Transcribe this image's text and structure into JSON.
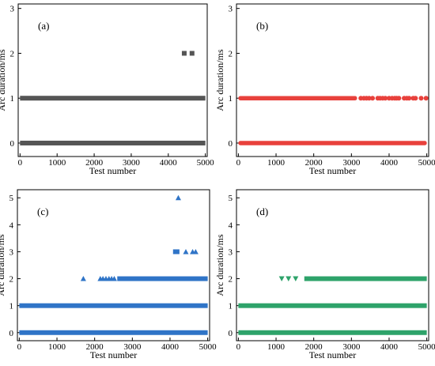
{
  "figure": {
    "panels": 4,
    "layout": "2x2 grid"
  },
  "chart_data": [
    {
      "type": "scatter",
      "panel_label": "(a)",
      "xlabel": "Test number",
      "ylabel": "Arc duration/ms",
      "xlim": [
        -50,
        5050
      ],
      "ylim": [
        -0.3,
        3.1
      ],
      "xticks": [
        0,
        1000,
        2000,
        3000,
        4000,
        5000
      ],
      "yticks": [
        0,
        1,
        2,
        3
      ],
      "marker": "square",
      "color": "#555555",
      "series": [
        {
          "bands": [
            {
              "y": 0,
              "x_start": 0,
              "x_end": 5000
            },
            {
              "y": 1,
              "x_start": 0,
              "x_end": 5000
            }
          ],
          "points": [
            {
              "x": 4430,
              "y": 2
            },
            {
              "x": 4640,
              "y": 2
            }
          ]
        }
      ]
    },
    {
      "type": "scatter",
      "panel_label": "(b)",
      "xlabel": "Test number",
      "ylabel": "Arc duration/ms",
      "xlim": [
        -50,
        5050
      ],
      "ylim": [
        -0.3,
        3.1
      ],
      "xticks": [
        0,
        1000,
        2000,
        3000,
        4000,
        5000
      ],
      "yticks": [
        0,
        1,
        2,
        3
      ],
      "marker": "circle",
      "color": "#e8413c",
      "series": [
        {
          "bands": [
            {
              "y": 0,
              "x_start": 0,
              "x_end": 5000
            },
            {
              "y": 1,
              "x_start": 0,
              "x_end": 3150
            }
          ],
          "points": [
            {
              "x": 3250,
              "y": 1
            },
            {
              "x": 3330,
              "y": 1
            },
            {
              "x": 3400,
              "y": 1
            },
            {
              "x": 3470,
              "y": 1
            },
            {
              "x": 3560,
              "y": 1
            },
            {
              "x": 3700,
              "y": 1
            },
            {
              "x": 3760,
              "y": 1
            },
            {
              "x": 3830,
              "y": 1
            },
            {
              "x": 3900,
              "y": 1
            },
            {
              "x": 4000,
              "y": 1
            },
            {
              "x": 4080,
              "y": 1
            },
            {
              "x": 4150,
              "y": 1
            },
            {
              "x": 4200,
              "y": 1
            },
            {
              "x": 4260,
              "y": 1
            },
            {
              "x": 4400,
              "y": 1
            },
            {
              "x": 4470,
              "y": 1
            },
            {
              "x": 4530,
              "y": 1
            },
            {
              "x": 4640,
              "y": 1
            },
            {
              "x": 4700,
              "y": 1
            },
            {
              "x": 4850,
              "y": 1
            },
            {
              "x": 4980,
              "y": 1
            }
          ]
        }
      ]
    },
    {
      "type": "scatter",
      "panel_label": "(c)",
      "xlabel": "Test number",
      "ylabel": "Arc duration/ms",
      "xlim": [
        -50,
        5050
      ],
      "ylim": [
        -0.3,
        5.3
      ],
      "xticks": [
        0,
        1000,
        2000,
        3000,
        4000,
        5000
      ],
      "yticks": [
        0,
        1,
        2,
        3,
        4,
        5
      ],
      "marker": "triangle-up",
      "color": "#2f74c7",
      "series": [
        {
          "bands": [
            {
              "y": 0,
              "x_start": 0,
              "x_end": 5000
            },
            {
              "y": 1,
              "x_start": 0,
              "x_end": 5000
            },
            {
              "y": 2,
              "x_start": 2600,
              "x_end": 5000
            },
            {
              "y": 3,
              "x_start": 4080,
              "x_end": 4250
            }
          ],
          "points": [
            {
              "x": 1700,
              "y": 2
            },
            {
              "x": 2150,
              "y": 2
            },
            {
              "x": 2220,
              "y": 2
            },
            {
              "x": 2300,
              "y": 2
            },
            {
              "x": 2380,
              "y": 2
            },
            {
              "x": 2450,
              "y": 2
            },
            {
              "x": 2520,
              "y": 2
            },
            {
              "x": 4420,
              "y": 3
            },
            {
              "x": 4600,
              "y": 3
            },
            {
              "x": 4680,
              "y": 3
            },
            {
              "x": 4220,
              "y": 5
            }
          ]
        }
      ]
    },
    {
      "type": "scatter",
      "panel_label": "(d)",
      "xlabel": "Test number",
      "ylabel": "Arc duration/ms",
      "xlim": [
        -50,
        5050
      ],
      "ylim": [
        -0.3,
        5.3
      ],
      "xticks": [
        0,
        1000,
        2000,
        3000,
        4000,
        5000
      ],
      "yticks": [
        0,
        1,
        2,
        3,
        4,
        5
      ],
      "marker": "triangle-down",
      "color": "#2ea36a",
      "series": [
        {
          "bands": [
            {
              "y": 0,
              "x_start": 0,
              "x_end": 5000
            },
            {
              "y": 1,
              "x_start": 0,
              "x_end": 5000
            },
            {
              "y": 2,
              "x_start": 1750,
              "x_end": 5000
            }
          ],
          "points": [
            {
              "x": 1150,
              "y": 2
            },
            {
              "x": 1330,
              "y": 2
            },
            {
              "x": 1520,
              "y": 2
            }
          ]
        }
      ]
    }
  ]
}
